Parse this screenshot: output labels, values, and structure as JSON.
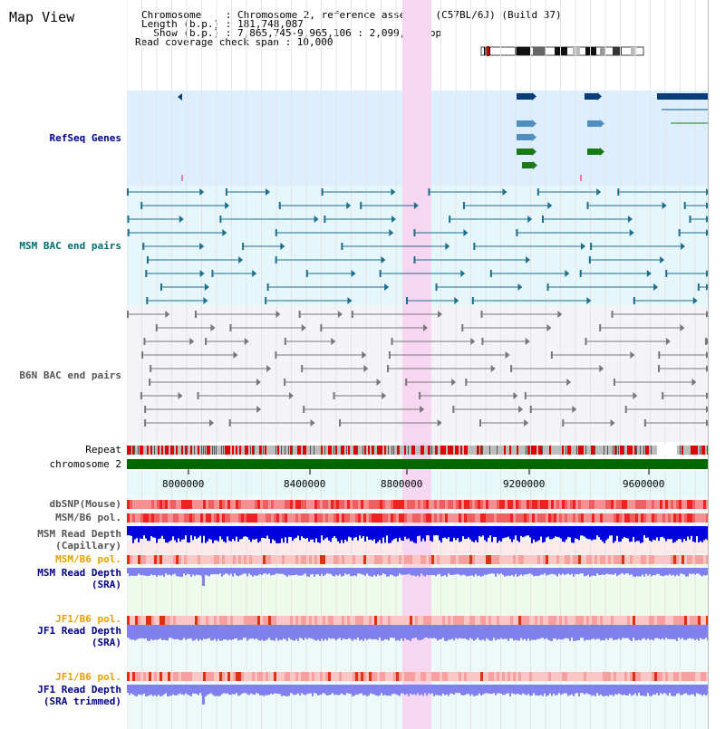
{
  "title": "Map View",
  "header": {
    "line1": "Chromosome    : Chromosome 2, reference assembly (C57BL/6J) (Build 37)",
    "line2": "Length (b.p.) : 181,748,087",
    "line3": "  Show (b.p.) : 7,865,745-9,965,106 : 2,099,362 bp",
    "line4": "Read coverage check span : 10,000"
  },
  "tracks": {
    "refseq": "RefSeq Genes",
    "msm_bac": "MSM BAC end pairs",
    "b6n_bac": "B6N BAC end pairs",
    "repeat": "Repeat",
    "chromosome": "chromosome 2",
    "dbsnp": "dbSNP(Mouse)",
    "msm_b6_pol": "MSM/B6 pol.",
    "msm_depth_cap_1": "MSM Read Depth",
    "msm_depth_cap_2": "(Capillary)",
    "msm_b6_pol2": "MSM/B6 pol.",
    "msm_depth_sra_1": "MSM Read Depth",
    "msm_depth_sra_2": "(SRA)",
    "jf1_pol1": "JF1/B6 pol.",
    "jf1_depth_sra_1": "JF1 Read Depth",
    "jf1_depth_sra_2": "(SRA)",
    "jf1_pol2": "JF1/B6 pol.",
    "jf1_trim_1": "JF1 Read Depth",
    "jf1_trim_2": "(SRA trimmed)"
  },
  "axis_ticks": [
    "8000000",
    "8400000",
    "8800000",
    "9200000",
    "9600000"
  ],
  "colors": {
    "refseq_bg": "#ddeeff",
    "msm_bg": "#e5f7fb",
    "highlight": "#f7d6f2",
    "chromosome": "#006600",
    "depth_dark": "#0000dd",
    "depth_light": "#8080ee"
  }
}
